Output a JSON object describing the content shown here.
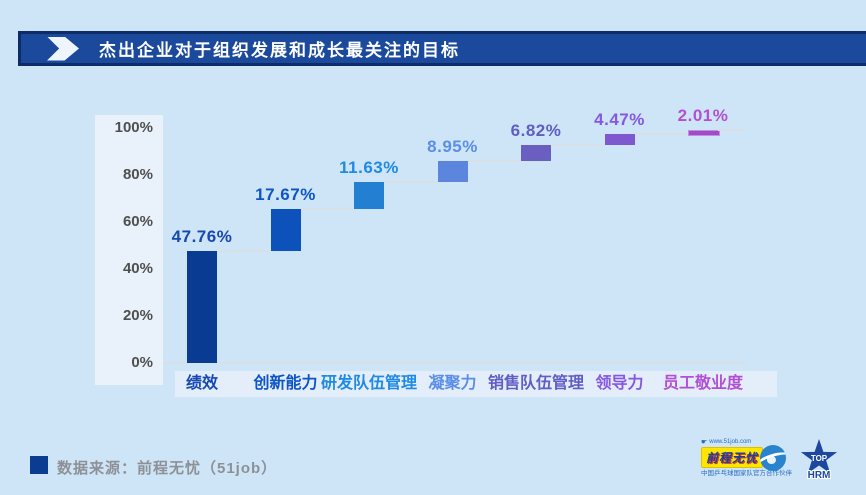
{
  "title": {
    "text": "杰出企业对于组织发展和成长最关注的目标"
  },
  "chart_data": {
    "type": "bar",
    "subtype": "waterfall",
    "title": "杰出企业对于组织发展和成长最关注的目标",
    "categories": [
      "绩效",
      "创新能力",
      "研发队伍管理",
      "凝聚力",
      "销售队伍管理",
      "领导力",
      "员工敬业度"
    ],
    "values": [
      47.76,
      17.67,
      11.63,
      8.95,
      6.82,
      4.47,
      2.01
    ],
    "value_labels": [
      "47.76%",
      "17.67%",
      "11.63%",
      "8.95%",
      "6.82%",
      "4.47%",
      "2.01%"
    ],
    "bar_colors": [
      "#0a3b92",
      "#0d51bb",
      "#227fd2",
      "#5c85dd",
      "#6a5ec0",
      "#7e58ce",
      "#a04cc6"
    ],
    "bar_border_colors": [
      null,
      null,
      null,
      null,
      null,
      null,
      "#c08fe0"
    ],
    "label_colors": [
      "#1747b0",
      "#0d55c6",
      "#1f8ae4",
      "#5b8ee8",
      "#605ec4",
      "#8557e2",
      "#b14fd6"
    ],
    "ylim": [
      0,
      100
    ],
    "grid": false,
    "legend": false,
    "axis": {
      "ticks": [
        {
          "value": 0,
          "label": "0%"
        },
        {
          "value": 20,
          "label": "20%"
        },
        {
          "value": 40,
          "label": "40%"
        },
        {
          "value": 60,
          "label": "60%"
        },
        {
          "value": 80,
          "label": "80%"
        },
        {
          "value": 100,
          "label": "100%"
        }
      ]
    }
  },
  "footer": {
    "source_label": "数据来源：前程无忧（51job）",
    "logo_51job": {
      "url_text": "www.51job.com",
      "name": "前程无忧",
      "partner_text": "中国乒乓球国家队官方合作伙伴"
    },
    "logo_tophrm": {
      "line1": "TOP",
      "line2": "HRM"
    }
  },
  "palette": {
    "page_background": "#cde5f7",
    "title_bar_fill": "#1b4a9c",
    "title_bar_border": "#0d2c68",
    "axis_panel": "#e9f2fb",
    "category_strip": "#e3eefa",
    "connector_line": "#d8dfe7",
    "tick_text": "#4f4f4f",
    "source_text": "#8d9196",
    "source_square": "#0a3c92",
    "logo_yellow": "#ffe600",
    "logo_blue": "#2a83cd",
    "star_blue": "#1d479e"
  }
}
